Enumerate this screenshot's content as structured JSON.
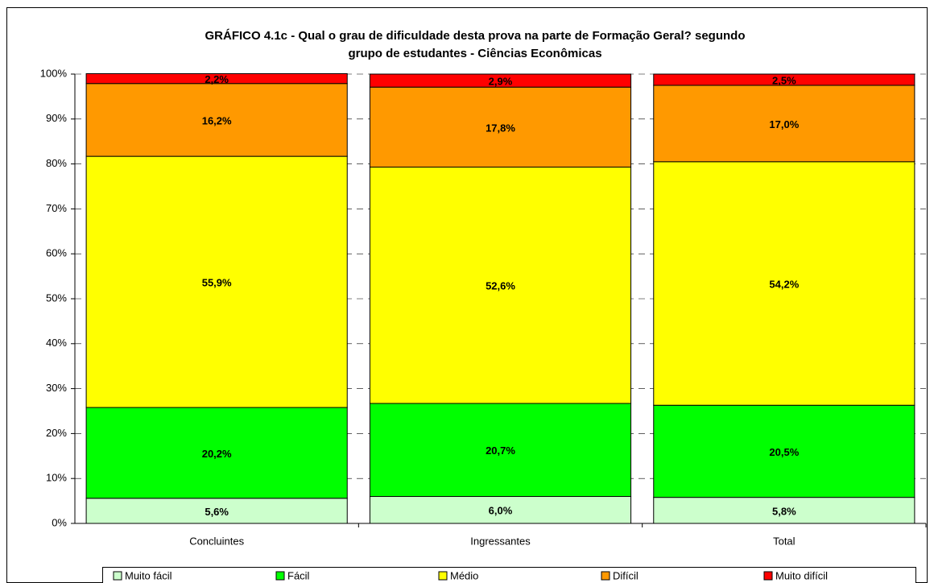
{
  "chart_data": {
    "type": "stacked_bar",
    "title": [
      "GRÁFICO 4.1c - Qual o grau de dificuldade desta prova na parte de Formação Geral? segundo",
      "grupo de estudantes  - Ciências Econômicas"
    ],
    "categories": [
      "Concluintes",
      "Ingressantes",
      "Total"
    ],
    "series": [
      {
        "name": "Muito fácil",
        "color": "#ccffcc",
        "values": [
          5.6,
          6.0,
          5.8
        ],
        "value_labels": [
          "5,6%",
          "6,0%",
          "5,8%"
        ]
      },
      {
        "name": "Fácil",
        "color": "#00ff00",
        "values": [
          20.2,
          20.7,
          20.5
        ],
        "value_labels": [
          "20,2%",
          "20,7%",
          "20,5%"
        ]
      },
      {
        "name": "Médio",
        "color": "#ffff00",
        "values": [
          55.9,
          52.6,
          54.2
        ],
        "value_labels": [
          "55,9%",
          "52,6%",
          "54,2%"
        ]
      },
      {
        "name": "Difícil",
        "color": "#ff9900",
        "values": [
          16.2,
          17.8,
          17.0
        ],
        "value_labels": [
          "16,2%",
          "17,8%",
          "17,0%"
        ]
      },
      {
        "name": "Muito difícil",
        "color": "#ff0000",
        "values": [
          2.2,
          2.9,
          2.5
        ],
        "value_labels": [
          "2,2%",
          "2,9%",
          "2,5%"
        ]
      }
    ],
    "ylim": [
      0,
      100
    ],
    "yticks": [
      {
        "value": 0,
        "label": "0%"
      },
      {
        "value": 10,
        "label": "10%"
      },
      {
        "value": 20,
        "label": "20%"
      },
      {
        "value": 30,
        "label": "30%"
      },
      {
        "value": 40,
        "label": "40%"
      },
      {
        "value": 50,
        "label": "50%"
      },
      {
        "value": 60,
        "label": "60%"
      },
      {
        "value": 70,
        "label": "70%"
      },
      {
        "value": 80,
        "label": "80%"
      },
      {
        "value": 90,
        "label": "90%"
      },
      {
        "value": 100,
        "label": "100%"
      }
    ],
    "grid": true,
    "legend": "bottom"
  }
}
